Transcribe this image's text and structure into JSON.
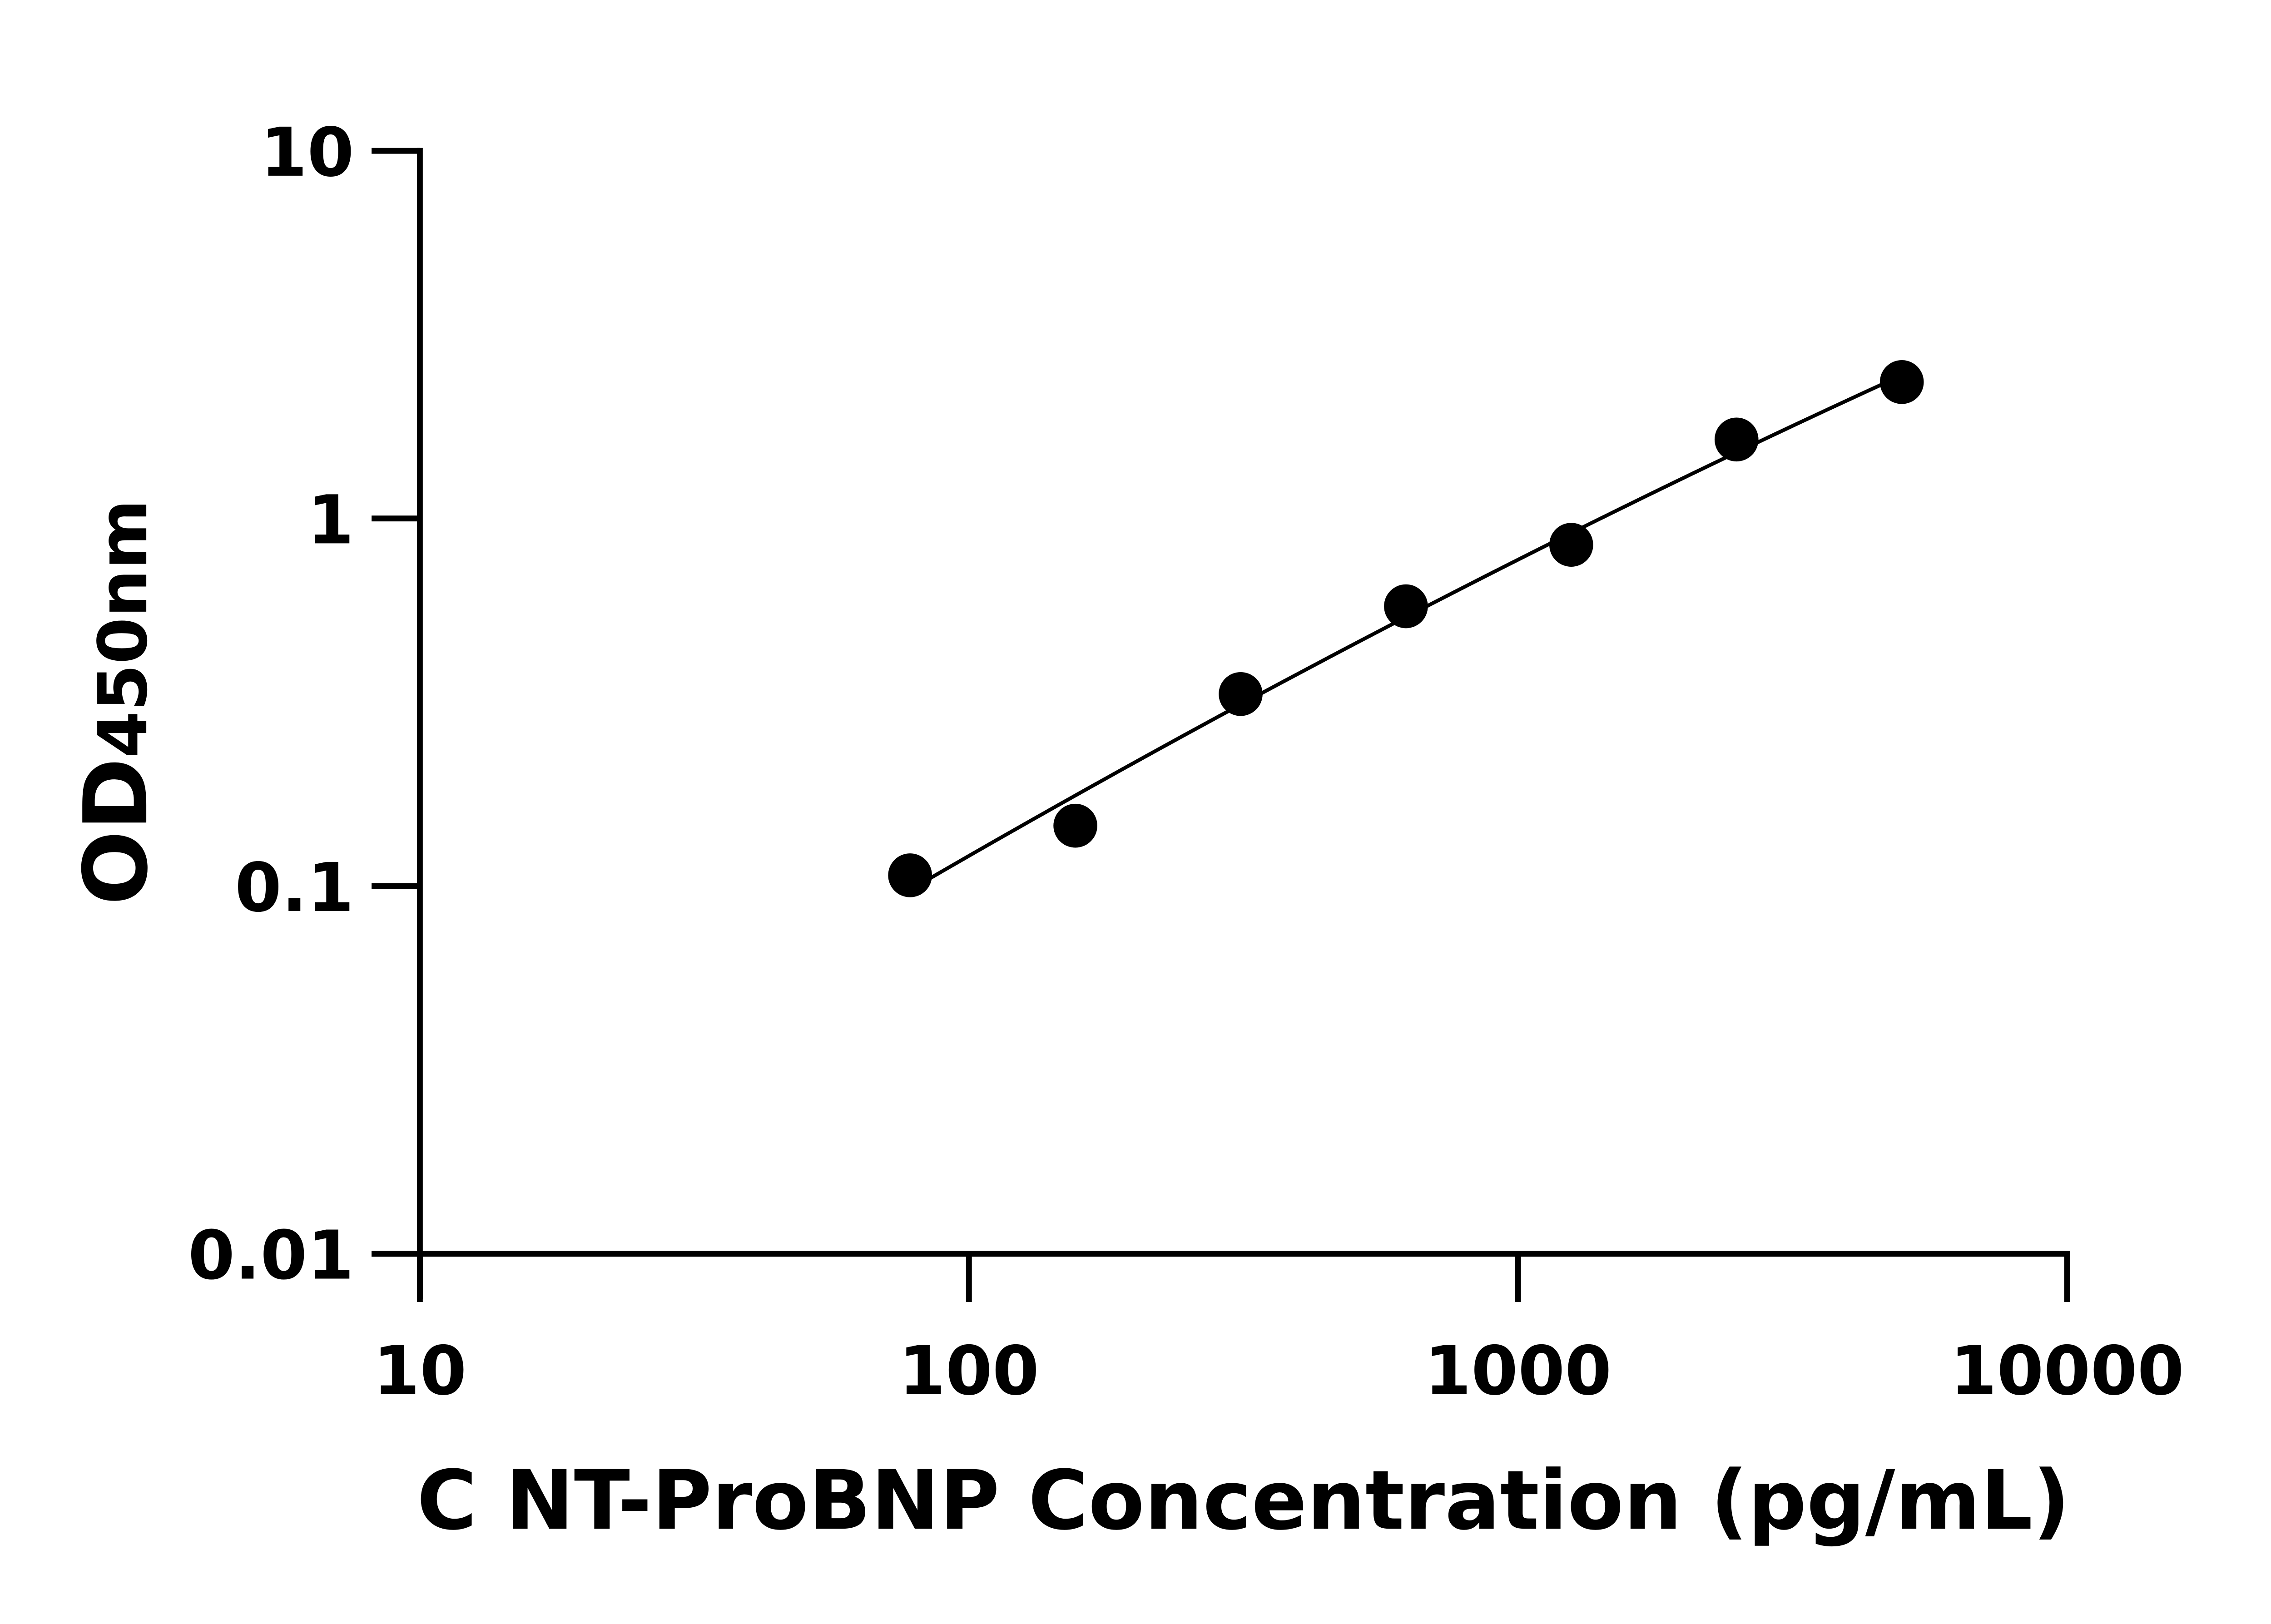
{
  "chart_data": {
    "type": "scatter",
    "title": "",
    "xlabel": "C NT-ProBNP Concentration (pg/mL)",
    "ylabel_main": "OD",
    "ylabel_sub": "450nm",
    "x_scale": "log",
    "y_scale": "log",
    "xlim": [
      10,
      10000
    ],
    "ylim": [
      0.01,
      10
    ],
    "x_ticks": [
      "10",
      "100",
      "1000",
      "10000"
    ],
    "y_ticks": [
      "0.01",
      "0.1",
      "1",
      "10"
    ],
    "grid": false,
    "fit_curve": true,
    "colors": {
      "points": "#000000",
      "curve": "#000000",
      "axes": "#000000"
    },
    "series": [
      {
        "x": [
          78.125,
          156.25,
          312.5,
          625,
          1250,
          2500,
          5000
        ],
        "y": [
          0.107,
          0.146,
          0.333,
          0.577,
          0.848,
          1.64,
          2.35
        ]
      }
    ]
  }
}
